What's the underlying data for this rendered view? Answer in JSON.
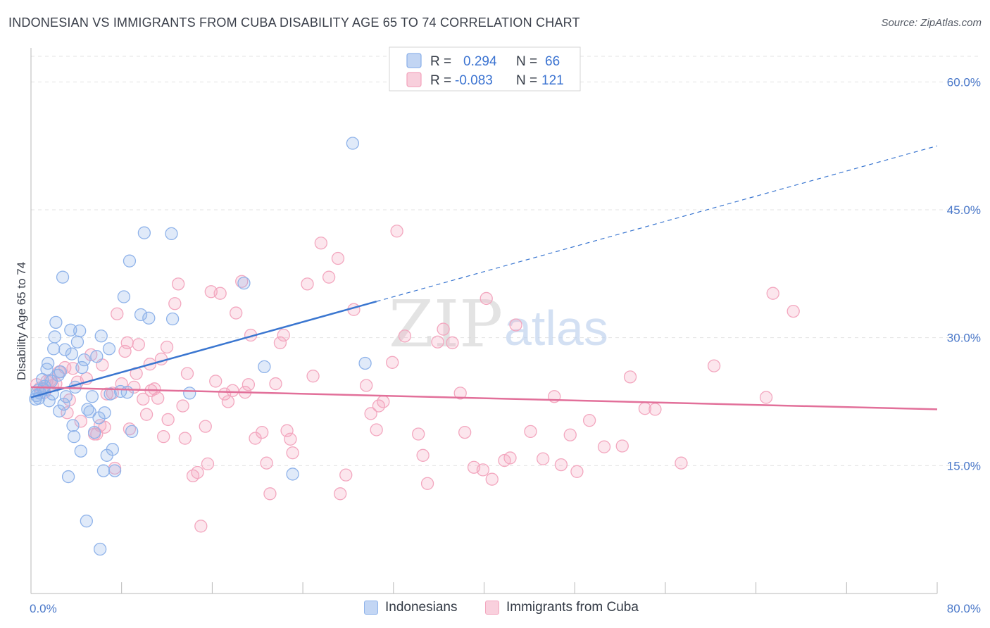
{
  "header": {
    "title": "INDONESIAN VS IMMIGRANTS FROM CUBA DISABILITY AGE 65 TO 74 CORRELATION CHART",
    "source": "Source: ZipAtlas.com"
  },
  "watermark": {
    "zip": "ZIP",
    "atlas": "atlas"
  },
  "legend_top": {
    "rows": [
      {
        "r_label": "R =",
        "r_value": "0.294",
        "n_label": "N =",
        "n_value": "66",
        "color": "#8fb3ea"
      },
      {
        "r_label": "R =",
        "r_value": "-0.083",
        "n_label": "N =",
        "n_value": "121",
        "color": "#f3a7bf"
      }
    ]
  },
  "legend_bottom": {
    "items": [
      {
        "label": "Indonesians",
        "color": "#8fb3ea"
      },
      {
        "label": "Immigrants from Cuba",
        "color": "#f3a7bf"
      }
    ]
  },
  "chart_data": {
    "type": "scatter",
    "ylabel": "Disability Age 65 to 74",
    "xlim": [
      0,
      80
    ],
    "ylim": [
      0,
      63
    ],
    "x_tick_labels": [
      "0.0%",
      "80.0%"
    ],
    "y_ticks": [
      15,
      30,
      45,
      60
    ],
    "y_tick_labels": [
      "15.0%",
      "30.0%",
      "45.0%",
      "60.0%"
    ],
    "grid": true,
    "series": [
      {
        "name": "Indonesians",
        "color": "#8fb3ea",
        "line_color": "#3a76d0",
        "trend": {
          "x0": 0,
          "y0": 23.0,
          "x1": 80,
          "y1": 52.5,
          "solid_until": 30.5
        },
        "points": [
          [
            0.4,
            22.8
          ],
          [
            0.5,
            23.2
          ],
          [
            0.6,
            23.8
          ],
          [
            0.7,
            22.9
          ],
          [
            0.8,
            23.5
          ],
          [
            1.0,
            25.1
          ],
          [
            1.1,
            24.0
          ],
          [
            1.2,
            24.3
          ],
          [
            1.4,
            26.3
          ],
          [
            1.5,
            27.0
          ],
          [
            1.6,
            22.6
          ],
          [
            1.8,
            24.9
          ],
          [
            1.9,
            23.4
          ],
          [
            2.0,
            28.7
          ],
          [
            2.1,
            30.1
          ],
          [
            2.2,
            31.8
          ],
          [
            2.4,
            25.6
          ],
          [
            2.5,
            21.4
          ],
          [
            2.6,
            26.0
          ],
          [
            2.8,
            37.1
          ],
          [
            2.9,
            22.2
          ],
          [
            3.0,
            28.6
          ],
          [
            3.1,
            23.1
          ],
          [
            3.3,
            13.7
          ],
          [
            3.5,
            30.9
          ],
          [
            3.6,
            28.1
          ],
          [
            3.8,
            18.4
          ],
          [
            3.9,
            24.2
          ],
          [
            4.1,
            29.5
          ],
          [
            4.3,
            30.8
          ],
          [
            4.4,
            16.7
          ],
          [
            4.5,
            26.5
          ],
          [
            4.7,
            27.4
          ],
          [
            4.9,
            8.5
          ],
          [
            5.0,
            21.6
          ],
          [
            5.2,
            21.3
          ],
          [
            5.4,
            23.1
          ],
          [
            5.6,
            18.9
          ],
          [
            5.8,
            27.8
          ],
          [
            6.0,
            20.6
          ],
          [
            6.1,
            5.2
          ],
          [
            6.2,
            30.2
          ],
          [
            6.4,
            14.4
          ],
          [
            6.5,
            21.2
          ],
          [
            6.7,
            16.2
          ],
          [
            6.9,
            28.7
          ],
          [
            7.0,
            23.4
          ],
          [
            7.2,
            16.9
          ],
          [
            7.4,
            14.4
          ],
          [
            7.9,
            23.7
          ],
          [
            8.2,
            34.8
          ],
          [
            8.5,
            23.6
          ],
          [
            8.7,
            39.0
          ],
          [
            8.9,
            19.0
          ],
          [
            9.7,
            32.7
          ],
          [
            10.0,
            42.3
          ],
          [
            10.4,
            32.3
          ],
          [
            12.4,
            42.2
          ],
          [
            12.5,
            32.2
          ],
          [
            14.0,
            23.5
          ],
          [
            18.8,
            36.4
          ],
          [
            20.6,
            26.6
          ],
          [
            23.1,
            14.0
          ],
          [
            28.4,
            52.8
          ],
          [
            29.5,
            27.0
          ],
          [
            3.7,
            19.7
          ]
        ]
      },
      {
        "name": "Immigrants from Cuba",
        "color": "#f3a7bf",
        "line_color": "#e2709a",
        "trend": {
          "x0": 0,
          "y0": 24.2,
          "x1": 80,
          "y1": 21.6
        },
        "points": [
          [
            0.5,
            24.5
          ],
          [
            0.8,
            24.1
          ],
          [
            1.2,
            23.6
          ],
          [
            1.4,
            24.9
          ],
          [
            1.7,
            25.0
          ],
          [
            1.9,
            24.4
          ],
          [
            2.2,
            24.6
          ],
          [
            2.5,
            26.0
          ],
          [
            3.0,
            26.5
          ],
          [
            3.2,
            21.2
          ],
          [
            3.4,
            22.7
          ],
          [
            3.7,
            26.4
          ],
          [
            4.1,
            24.8
          ],
          [
            4.4,
            20.2
          ],
          [
            4.9,
            25.2
          ],
          [
            5.3,
            28.0
          ],
          [
            5.6,
            18.7
          ],
          [
            5.8,
            18.7
          ],
          [
            6.1,
            19.7
          ],
          [
            6.3,
            26.8
          ],
          [
            6.5,
            19.5
          ],
          [
            6.7,
            23.4
          ],
          [
            7.2,
            23.5
          ],
          [
            7.4,
            14.7
          ],
          [
            7.6,
            32.8
          ],
          [
            8.0,
            24.6
          ],
          [
            8.3,
            28.4
          ],
          [
            8.5,
            29.4
          ],
          [
            8.7,
            19.3
          ],
          [
            9.1,
            24.2
          ],
          [
            9.3,
            25.8
          ],
          [
            9.5,
            29.2
          ],
          [
            9.9,
            22.8
          ],
          [
            10.2,
            21.0
          ],
          [
            10.5,
            26.9
          ],
          [
            10.9,
            24.0
          ],
          [
            11.2,
            22.9
          ],
          [
            11.5,
            27.5
          ],
          [
            11.7,
            18.4
          ],
          [
            12.0,
            28.9
          ],
          [
            12.1,
            20.4
          ],
          [
            12.7,
            34.0
          ],
          [
            13.0,
            36.3
          ],
          [
            13.4,
            22.0
          ],
          [
            13.6,
            18.2
          ],
          [
            13.8,
            25.8
          ],
          [
            14.3,
            13.8
          ],
          [
            14.7,
            14.2
          ],
          [
            15.0,
            7.9
          ],
          [
            15.4,
            19.6
          ],
          [
            15.6,
            15.2
          ],
          [
            15.9,
            35.4
          ],
          [
            16.3,
            24.9
          ],
          [
            16.7,
            35.2
          ],
          [
            17.1,
            23.4
          ],
          [
            17.4,
            22.5
          ],
          [
            17.8,
            23.8
          ],
          [
            18.1,
            32.9
          ],
          [
            18.6,
            36.6
          ],
          [
            18.9,
            23.6
          ],
          [
            19.2,
            24.5
          ],
          [
            19.4,
            30.3
          ],
          [
            19.8,
            18.2
          ],
          [
            20.4,
            18.9
          ],
          [
            20.8,
            15.3
          ],
          [
            21.1,
            11.7
          ],
          [
            21.6,
            24.6
          ],
          [
            22.0,
            29.4
          ],
          [
            22.3,
            30.3
          ],
          [
            22.6,
            19.1
          ],
          [
            22.9,
            18.1
          ],
          [
            23.1,
            16.5
          ],
          [
            24.4,
            36.3
          ],
          [
            24.9,
            25.5
          ],
          [
            25.6,
            41.1
          ],
          [
            26.3,
            37.1
          ],
          [
            27.1,
            39.3
          ],
          [
            27.3,
            11.7
          ],
          [
            27.8,
            13.9
          ],
          [
            28.5,
            33.3
          ],
          [
            29.6,
            24.4
          ],
          [
            30.0,
            21.1
          ],
          [
            30.5,
            19.2
          ],
          [
            30.7,
            22.0
          ],
          [
            31.1,
            22.5
          ],
          [
            31.9,
            27.1
          ],
          [
            32.3,
            42.5
          ],
          [
            33.0,
            30.2
          ],
          [
            34.2,
            18.7
          ],
          [
            34.6,
            16.2
          ],
          [
            35.0,
            12.9
          ],
          [
            35.9,
            29.5
          ],
          [
            36.4,
            31.0
          ],
          [
            37.2,
            29.4
          ],
          [
            37.9,
            23.5
          ],
          [
            38.3,
            18.9
          ],
          [
            39.1,
            14.8
          ],
          [
            39.9,
            14.5
          ],
          [
            40.2,
            34.6
          ],
          [
            40.7,
            13.4
          ],
          [
            41.8,
            15.6
          ],
          [
            42.3,
            15.9
          ],
          [
            42.8,
            31.5
          ],
          [
            44.1,
            19.0
          ],
          [
            45.2,
            15.8
          ],
          [
            46.2,
            23.1
          ],
          [
            46.8,
            15.1
          ],
          [
            47.6,
            18.6
          ],
          [
            48.2,
            14.3
          ],
          [
            49.3,
            20.3
          ],
          [
            50.6,
            17.2
          ],
          [
            52.2,
            17.3
          ],
          [
            52.9,
            25.4
          ],
          [
            54.2,
            21.7
          ],
          [
            55.1,
            21.6
          ],
          [
            57.4,
            15.3
          ],
          [
            60.3,
            26.7
          ],
          [
            64.9,
            23.0
          ],
          [
            65.5,
            35.2
          ],
          [
            67.3,
            33.1
          ],
          [
            10.6,
            23.8
          ]
        ]
      }
    ]
  }
}
